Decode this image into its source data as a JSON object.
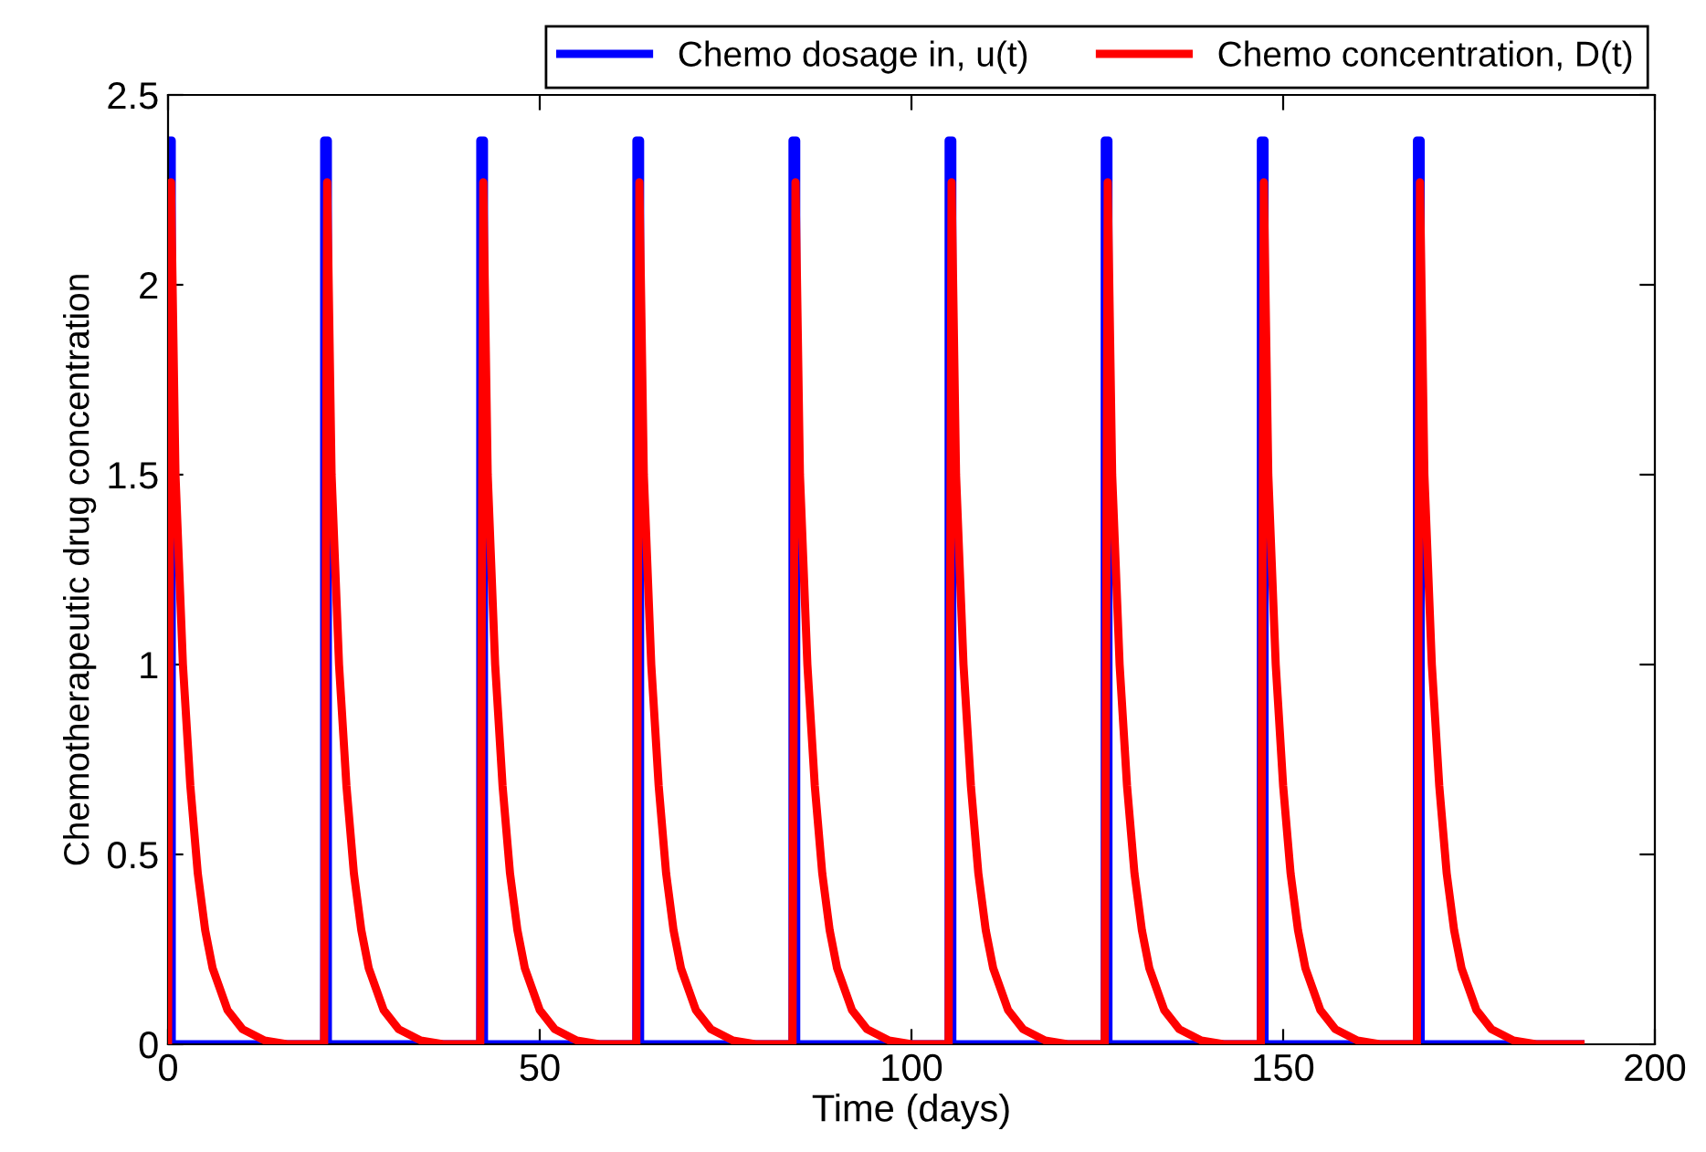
{
  "chart_data": {
    "type": "line",
    "xlabel": "Time (days)",
    "ylabel": "Chemotherapeutic drug concentration",
    "xlim": [
      0,
      200
    ],
    "xticks": [
      0,
      50,
      100,
      150,
      200
    ],
    "ylim": [
      0,
      2.5
    ],
    "yticks": [
      0,
      {
        "value": 0.5,
        "label": "0.5"
      },
      1,
      {
        "value": 1.5,
        "label": "1.5"
      },
      2,
      {
        "value": 2.5,
        "label": "2.5"
      }
    ],
    "grid": false,
    "legend": "top right",
    "marker": "none",
    "line_style": "solid",
    "series": [
      {
        "name": "Chemo dosage in, u(t)",
        "color": "#0000ff",
        "x": [
          0,
          0,
          0.5,
          0.5,
          21,
          21,
          21.5,
          21.5,
          42,
          42,
          42.5,
          42.5,
          63,
          63,
          63.5,
          63.5,
          84,
          84,
          84.5,
          84.5,
          105,
          105,
          105.5,
          105.5,
          126,
          126,
          126.5,
          126.5,
          147,
          147,
          147.5,
          147.5,
          168,
          168,
          168.5,
          168.5,
          190
        ],
        "values": [
          0,
          2.38,
          2.38,
          0,
          0,
          2.38,
          2.38,
          0,
          0,
          2.38,
          2.38,
          0,
          0,
          2.38,
          2.38,
          0,
          0,
          2.38,
          2.38,
          0,
          0,
          2.38,
          2.38,
          0,
          0,
          2.38,
          2.38,
          0,
          0,
          2.38,
          2.38,
          0,
          0,
          2.38,
          2.38,
          0,
          0
        ]
      },
      {
        "name": "Chemo concentration, D(t)",
        "color": "#ff0000",
        "x": [
          0,
          0.4,
          1,
          2,
          3,
          4,
          5,
          6,
          8,
          10,
          13,
          16,
          21,
          21.4,
          22,
          23,
          24,
          25,
          26,
          27,
          29,
          31,
          34,
          37,
          42,
          42.4,
          43,
          44,
          45,
          46,
          47,
          48,
          50,
          52,
          55,
          58,
          63,
          63.4,
          64,
          65,
          66,
          67,
          68,
          69,
          71,
          73,
          76,
          79,
          84,
          84.4,
          85,
          86,
          87,
          88,
          89,
          90,
          92,
          94,
          97,
          100,
          105,
          105.4,
          106,
          107,
          108,
          109,
          110,
          111,
          113,
          115,
          118,
          121,
          126,
          126.4,
          127,
          128,
          129,
          130,
          131,
          132,
          134,
          136,
          139,
          142,
          147,
          147.4,
          148,
          149,
          150,
          151,
          152,
          153,
          155,
          157,
          160,
          163,
          168,
          168.4,
          169,
          170,
          171,
          172,
          173,
          174,
          176,
          178,
          181,
          184,
          190
        ],
        "values": [
          0,
          2.27,
          1.5,
          1.0,
          0.68,
          0.45,
          0.3,
          0.2,
          0.09,
          0.04,
          0.01,
          0,
          0,
          2.27,
          1.5,
          1.0,
          0.68,
          0.45,
          0.3,
          0.2,
          0.09,
          0.04,
          0.01,
          0,
          0,
          2.27,
          1.5,
          1.0,
          0.68,
          0.45,
          0.3,
          0.2,
          0.09,
          0.04,
          0.01,
          0,
          0,
          2.27,
          1.5,
          1.0,
          0.68,
          0.45,
          0.3,
          0.2,
          0.09,
          0.04,
          0.01,
          0,
          0,
          2.27,
          1.5,
          1.0,
          0.68,
          0.45,
          0.3,
          0.2,
          0.09,
          0.04,
          0.01,
          0,
          0,
          2.27,
          1.5,
          1.0,
          0.68,
          0.45,
          0.3,
          0.2,
          0.09,
          0.04,
          0.01,
          0,
          0,
          2.27,
          1.5,
          1.0,
          0.68,
          0.45,
          0.3,
          0.2,
          0.09,
          0.04,
          0.01,
          0,
          0,
          2.27,
          1.5,
          1.0,
          0.68,
          0.45,
          0.3,
          0.2,
          0.09,
          0.04,
          0.01,
          0,
          0,
          2.27,
          1.5,
          1.0,
          0.68,
          0.45,
          0.3,
          0.2,
          0.09,
          0.04,
          0.01,
          0,
          0
        ]
      }
    ]
  }
}
